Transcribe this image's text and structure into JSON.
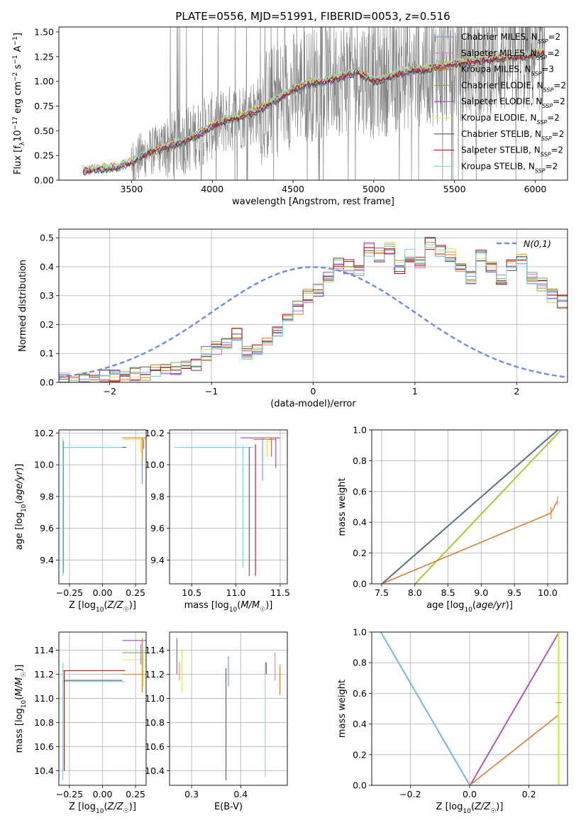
{
  "figure": {
    "title": "PLATE=0556, MJD=51991, FIBERID=0053, z=0.516"
  },
  "colors": {
    "Chabrier MILES": "#6b8ef0",
    "Salpeter MILES": "#e07ab0",
    "Kroupa MILES": "#e0772a",
    "Chabrier ELODIE": "#7fae4a",
    "Salpeter ELODIE": "#a040c0",
    "Kroupa ELODIE": "#d8e850",
    "Chabrier STELIB": "#555555",
    "Salpeter STELIB": "#b01818",
    "Kroupa STELIB": "#7fd6e0",
    "data": "#808080",
    "gaussian": "#6b8ee0"
  },
  "chart_data": [
    {
      "id": "spectrum",
      "type": "line",
      "xlabel": "wavelength [Angstrom, rest frame]",
      "ylabel": "Flux [f_λ 10^-17 erg cm^-2 s^-1 A^-1]",
      "xlim": [
        3050,
        6200
      ],
      "ylim": [
        0,
        1.55
      ],
      "xticks": [
        3500,
        4000,
        4500,
        5000,
        5500,
        6000
      ],
      "yticks": [
        0.0,
        0.25,
        0.5,
        0.75,
        1.0,
        1.25,
        1.5
      ],
      "grid": false,
      "legend_position": "top-right",
      "series": [
        {
          "name": "Chabrier MILES, N_SSP=2"
        },
        {
          "name": "Salpeter MILES, N_SSP=2"
        },
        {
          "name": "Kroupa MILES, N_SSP=3"
        },
        {
          "name": "Chabrier ELODIE, N_SSP=2"
        },
        {
          "name": "Salpeter ELODIE, N_SSP=2"
        },
        {
          "name": "Kroupa ELODIE, N_SSP=2"
        },
        {
          "name": "Chabrier STELIB, N_SSP=2"
        },
        {
          "name": "Salpeter STELIB, N_SSP=2"
        },
        {
          "name": "Kroupa STELIB, N_SSP=2"
        }
      ],
      "continuum": {
        "x": [
          3200,
          3400,
          3500,
          3600,
          3700,
          3800,
          3900,
          4000,
          4100,
          4200,
          4300,
          4400,
          4500,
          4600,
          4700,
          4800,
          4900,
          5000,
          5100,
          5200,
          5300,
          5400,
          5500,
          5600,
          5700,
          5800,
          5900,
          6000,
          6050
        ],
        "y": [
          0.1,
          0.13,
          0.18,
          0.28,
          0.33,
          0.38,
          0.45,
          0.55,
          0.62,
          0.66,
          0.72,
          0.82,
          0.92,
          0.98,
          1.0,
          1.05,
          1.1,
          1.0,
          1.05,
          1.1,
          1.12,
          1.15,
          1.18,
          1.2,
          1.22,
          1.24,
          1.25,
          1.28,
          1.3
        ]
      }
    },
    {
      "id": "residuals",
      "type": "bar",
      "xlabel": "(data-model)/error",
      "ylabel": "Normed distribution",
      "xlim": [
        -2.5,
        2.5
      ],
      "ylim": [
        0,
        0.53
      ],
      "xticks": [
        -2,
        -1,
        0,
        1,
        2
      ],
      "yticks": [
        0.0,
        0.1,
        0.2,
        0.3,
        0.4,
        0.5
      ],
      "grid": true,
      "legend_position": "top-right",
      "legend": "N(0,1)",
      "bin_edges_start": -2.5,
      "bin_width": 0.1,
      "values": [
        0.01,
        0.01,
        0.01,
        0.01,
        0.02,
        0.02,
        0.02,
        0.03,
        0.03,
        0.04,
        0.04,
        0.05,
        0.05,
        0.06,
        0.1,
        0.12,
        0.14,
        0.17,
        0.1,
        0.12,
        0.14,
        0.18,
        0.22,
        0.26,
        0.3,
        0.32,
        0.36,
        0.41,
        0.4,
        0.38,
        0.46,
        0.44,
        0.46,
        0.4,
        0.44,
        0.42,
        0.48,
        0.46,
        0.44,
        0.4,
        0.36,
        0.44,
        0.4,
        0.36,
        0.4,
        0.42,
        0.36,
        0.34,
        0.3,
        0.28,
        0.34,
        0.3,
        0.26,
        0.24,
        0.28,
        0.22,
        0.2,
        0.26,
        0.22,
        0.18,
        0.2,
        0.16,
        0.17,
        0.15,
        0.14,
        0.1,
        0.12,
        0.1,
        0.1,
        0.09,
        0.1,
        0.08,
        0.07,
        0.09,
        0.06,
        0.07,
        0.07,
        0.06,
        0.06,
        0.06
      ]
    },
    {
      "id": "age-vs-Z",
      "type": "scatter",
      "xlabel": "Z [log10(Z/Z☉)]",
      "ylabel": "age [log10(age/yr)]",
      "xlim": [
        -0.33,
        0.33
      ],
      "ylim": [
        9.25,
        10.22
      ],
      "xticks": [
        -0.25,
        0.0,
        0.25
      ],
      "yticks": [
        9.4,
        9.6,
        9.8,
        10.0,
        10.2
      ],
      "grid": true
    },
    {
      "id": "age-vs-mass",
      "type": "scatter",
      "xlabel": "mass [log10(M/M☉)]",
      "ylabel": "",
      "xlim": [
        10.25,
        11.58
      ],
      "ylim": [
        9.25,
        10.22
      ],
      "xticks": [
        10.5,
        11.0,
        11.5
      ],
      "yticks": [
        9.4,
        9.6,
        9.8,
        10.0,
        10.2
      ],
      "grid": true
    },
    {
      "id": "mass-weight-vs-age",
      "type": "line",
      "xlabel": "age [log10(age/yr)]",
      "ylabel": "mass weight",
      "xlim": [
        7.35,
        10.3
      ],
      "ylim": [
        0,
        1.0
      ],
      "xticks": [
        7.5,
        8.0,
        8.5,
        9.0,
        9.5,
        10.0
      ],
      "yticks": [
        0.0,
        0.2,
        0.4,
        0.6,
        0.8,
        1.0
      ],
      "grid": true,
      "series": [
        {
          "x": [
            7.5,
            10.15
          ],
          "y": [
            0,
            1.0
          ]
        },
        {
          "x": [
            8.0,
            10.2
          ],
          "y": [
            0,
            1.0
          ]
        },
        {
          "x": [
            7.5,
            10.05,
            10.15
          ],
          "y": [
            0,
            0.46,
            0.54
          ]
        }
      ]
    },
    {
      "id": "mass-vs-Z",
      "type": "scatter",
      "xlabel": "Z [log10(Z/Z☉)]",
      "ylabel": "mass [log10(M/M☉)]",
      "xlim": [
        -0.33,
        0.33
      ],
      "ylim": [
        10.28,
        11.55
      ],
      "xticks": [
        -0.25,
        0.0,
        0.25
      ],
      "yticks": [
        10.4,
        10.6,
        10.8,
        11.0,
        11.2,
        11.4
      ],
      "grid": true
    },
    {
      "id": "mass-vs-EBV",
      "type": "scatter",
      "xlabel": "E(B-V)",
      "ylabel": "",
      "xlim": [
        0.255,
        0.495
      ],
      "ylim": [
        10.28,
        11.55
      ],
      "xticks": [
        0.3,
        0.4
      ],
      "yticks": [
        10.4,
        10.6,
        10.8,
        11.0,
        11.2,
        11.4
      ],
      "grid": true
    },
    {
      "id": "mass-weight-vs-Z",
      "type": "line",
      "xlabel": "Z [log10(Z/Z☉)]",
      "ylabel": "mass weight",
      "xlim": [
        -0.33,
        0.33
      ],
      "ylim": [
        0,
        1.0
      ],
      "xticks": [
        -0.2,
        0.0,
        0.2
      ],
      "yticks": [
        0.0,
        0.2,
        0.4,
        0.6,
        0.8,
        1.0
      ],
      "grid": true,
      "series": [
        {
          "x": [
            -0.3,
            0.0
          ],
          "y": [
            1.0,
            0
          ]
        },
        {
          "x": [
            0.0,
            0.3
          ],
          "y": [
            0,
            1.0
          ]
        },
        {
          "x": [
            0.0,
            0.3
          ],
          "y": [
            0,
            0.46
          ]
        }
      ]
    }
  ]
}
